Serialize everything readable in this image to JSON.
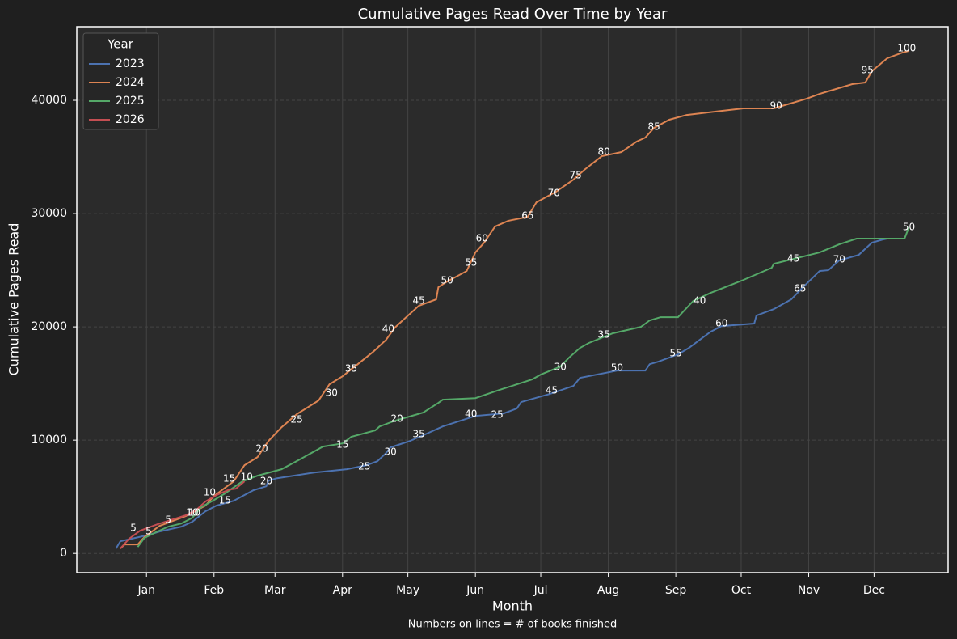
{
  "chart_data": {
    "type": "line",
    "title": "Cumulative Pages Read Over Time by Year",
    "x_label": "Month",
    "y_label": "Cumulative Pages Read",
    "caption": "Numbers on lines = # of books finished",
    "legend_title": "Year",
    "legend_position": "upper-left",
    "grid": true,
    "xlim": [
      -17,
      383
    ],
    "ylim": [
      -1700,
      46500
    ],
    "xticks": [
      {
        "value": 15,
        "label": "Jan"
      },
      {
        "value": 46,
        "label": "Feb"
      },
      {
        "value": 74,
        "label": "Mar"
      },
      {
        "value": 105,
        "label": "Apr"
      },
      {
        "value": 135,
        "label": "May"
      },
      {
        "value": 166,
        "label": "Jun"
      },
      {
        "value": 196,
        "label": "Jul"
      },
      {
        "value": 227,
        "label": "Aug"
      },
      {
        "value": 258,
        "label": "Sep"
      },
      {
        "value": 288,
        "label": "Oct"
      },
      {
        "value": 319,
        "label": "Nov"
      },
      {
        "value": 349,
        "label": "Dec"
      }
    ],
    "yticks": [
      0,
      10000,
      20000,
      30000,
      40000
    ],
    "series": [
      {
        "name": "2023",
        "color": "#4c72b0",
        "x": [
          1,
          3,
          8,
          16,
          21,
          31,
          36,
          42,
          47,
          55,
          64,
          70,
          71,
          75,
          92,
          107,
          116,
          121,
          125,
          127,
          136,
          142,
          151,
          166,
          179,
          185,
          187,
          200,
          211,
          214,
          231,
          244,
          246,
          250,
          259,
          264,
          270,
          274,
          279,
          294,
          295,
          303,
          311,
          316,
          324,
          328,
          333,
          342,
          348,
          353,
          355
        ],
        "values": [
          430,
          1070,
          1290,
          1640,
          1930,
          2360,
          2790,
          3710,
          4210,
          4640,
          5570,
          5930,
          6430,
          6640,
          7140,
          7430,
          7790,
          8140,
          8860,
          9360,
          9930,
          10430,
          11210,
          12140,
          12360,
          12790,
          13360,
          14070,
          14790,
          15500,
          16140,
          16140,
          16710,
          16930,
          17570,
          18140,
          19000,
          19570,
          20070,
          20290,
          21000,
          21570,
          22430,
          23430,
          24930,
          25000,
          25860,
          26360,
          27430,
          27710,
          27790
        ],
        "milestones": [
          {
            "day": 16,
            "pages": 1500,
            "books": 5
          },
          {
            "day": 37,
            "pages": 3140,
            "books": 10
          },
          {
            "day": 51,
            "pages": 4210,
            "books": 15
          },
          {
            "day": 70,
            "pages": 5930,
            "books": 20
          },
          {
            "day": 115,
            "pages": 7210,
            "books": 25
          },
          {
            "day": 127,
            "pages": 8500,
            "books": 30
          },
          {
            "day": 140,
            "pages": 10070,
            "books": 35
          },
          {
            "day": 164,
            "pages": 11860,
            "books": 40
          },
          {
            "day": 201,
            "pages": 13930,
            "books": 45
          },
          {
            "day": 231,
            "pages": 15930,
            "books": 50
          },
          {
            "day": 258,
            "pages": 17210,
            "books": 55
          },
          {
            "day": 279,
            "pages": 19860,
            "books": 60
          },
          {
            "day": 315,
            "pages": 22930,
            "books": 65
          },
          {
            "day": 333,
            "pages": 25500,
            "books": 70
          }
        ]
      },
      {
        "name": "2024",
        "color": "#dd8452",
        "x": [
          3,
          5,
          11,
          14,
          21,
          33,
          42,
          46,
          55,
          60,
          66,
          71,
          77,
          84,
          94,
          99,
          105,
          112,
          119,
          125,
          129,
          133,
          140,
          148,
          149,
          153,
          162,
          166,
          170,
          175,
          181,
          190,
          194,
          203,
          211,
          216,
          224,
          233,
          240,
          244,
          248,
          255,
          263,
          289,
          303,
          318,
          324,
          339,
          345,
          348,
          355,
          362,
          365
        ],
        "values": [
          430,
          790,
          790,
          1430,
          2430,
          3290,
          4210,
          5070,
          6360,
          7790,
          8500,
          9930,
          11140,
          12290,
          13500,
          14930,
          15640,
          16710,
          17790,
          18860,
          19930,
          20640,
          21860,
          22430,
          23500,
          24000,
          24930,
          26570,
          27430,
          28860,
          29360,
          29710,
          31000,
          31930,
          33000,
          33860,
          35070,
          35430,
          36360,
          36710,
          37570,
          38290,
          38710,
          39290,
          39290,
          40140,
          40570,
          41430,
          41570,
          42570,
          43710,
          44210,
          44360
        ],
        "milestones": [
          {
            "day": 25,
            "pages": 2500,
            "books": 5
          },
          {
            "day": 44,
            "pages": 4930,
            "books": 10
          },
          {
            "day": 53,
            "pages": 6140,
            "books": 15
          },
          {
            "day": 68,
            "pages": 8790,
            "books": 20
          },
          {
            "day": 84,
            "pages": 11360,
            "books": 25
          },
          {
            "day": 100,
            "pages": 13710,
            "books": 30
          },
          {
            "day": 109,
            "pages": 15860,
            "books": 35
          },
          {
            "day": 126,
            "pages": 19360,
            "books": 40
          },
          {
            "day": 140,
            "pages": 21860,
            "books": 45
          },
          {
            "day": 153,
            "pages": 23640,
            "books": 50
          },
          {
            "day": 164,
            "pages": 25210,
            "books": 55
          },
          {
            "day": 169,
            "pages": 27360,
            "books": 60
          },
          {
            "day": 190,
            "pages": 29360,
            "books": 65
          },
          {
            "day": 202,
            "pages": 31360,
            "books": 70
          },
          {
            "day": 212,
            "pages": 32930,
            "books": 75
          },
          {
            "day": 225,
            "pages": 35000,
            "books": 80
          },
          {
            "day": 248,
            "pages": 37210,
            "books": 85
          },
          {
            "day": 304,
            "pages": 39070,
            "books": 90
          },
          {
            "day": 346,
            "pages": 42210,
            "books": 95
          },
          {
            "day": 364,
            "pages": 44140,
            "books": 100
          }
        ]
      },
      {
        "name": "2025",
        "color": "#55a868",
        "x": [
          11,
          14,
          20,
          25,
          31,
          36,
          40,
          46,
          51,
          59,
          66,
          77,
          86,
          96,
          105,
          109,
          120,
          122,
          129,
          142,
          149,
          151,
          166,
          177,
          192,
          196,
          205,
          209,
          214,
          218,
          229,
          242,
          246,
          251,
          259,
          266,
          274,
          289,
          302,
          303,
          324,
          333,
          341,
          363,
          365
        ],
        "values": [
          570,
          1360,
          1930,
          2360,
          2640,
          3140,
          4070,
          4710,
          5290,
          6360,
          6860,
          7430,
          8360,
          9430,
          9710,
          10290,
          10860,
          11210,
          11710,
          12430,
          13290,
          13570,
          13710,
          14430,
          15360,
          15790,
          16500,
          17290,
          18140,
          18570,
          19430,
          20000,
          20570,
          20860,
          20860,
          22290,
          23000,
          24140,
          25210,
          25570,
          26570,
          27290,
          27790,
          27790,
          28790
        ],
        "milestones": [
          {
            "day": 36,
            "pages": 3140,
            "books": 10
          },
          {
            "day": 105,
            "pages": 9140,
            "books": 15
          },
          {
            "day": 130,
            "pages": 11430,
            "books": 20
          },
          {
            "day": 176,
            "pages": 11790,
            "books": 25
          },
          {
            "day": 205,
            "pages": 16000,
            "books": 30
          },
          {
            "day": 225,
            "pages": 18860,
            "books": 35
          },
          {
            "day": 269,
            "pages": 21860,
            "books": 40
          },
          {
            "day": 312,
            "pages": 25570,
            "books": 45
          },
          {
            "day": 365,
            "pages": 28360,
            "books": 50
          }
        ]
      },
      {
        "name": "2026",
        "color": "#c44e52",
        "x": [
          3,
          7,
          12,
          20,
          27,
          33,
          38,
          42,
          47,
          53,
          56,
          60
        ],
        "values": [
          430,
          1290,
          2000,
          2570,
          3000,
          3360,
          3860,
          4570,
          5140,
          5640,
          5710,
          6360
        ],
        "milestones": [
          {
            "day": 9,
            "pages": 1790,
            "books": 5
          },
          {
            "day": 61,
            "pages": 6290,
            "books": 10
          }
        ]
      }
    ]
  }
}
